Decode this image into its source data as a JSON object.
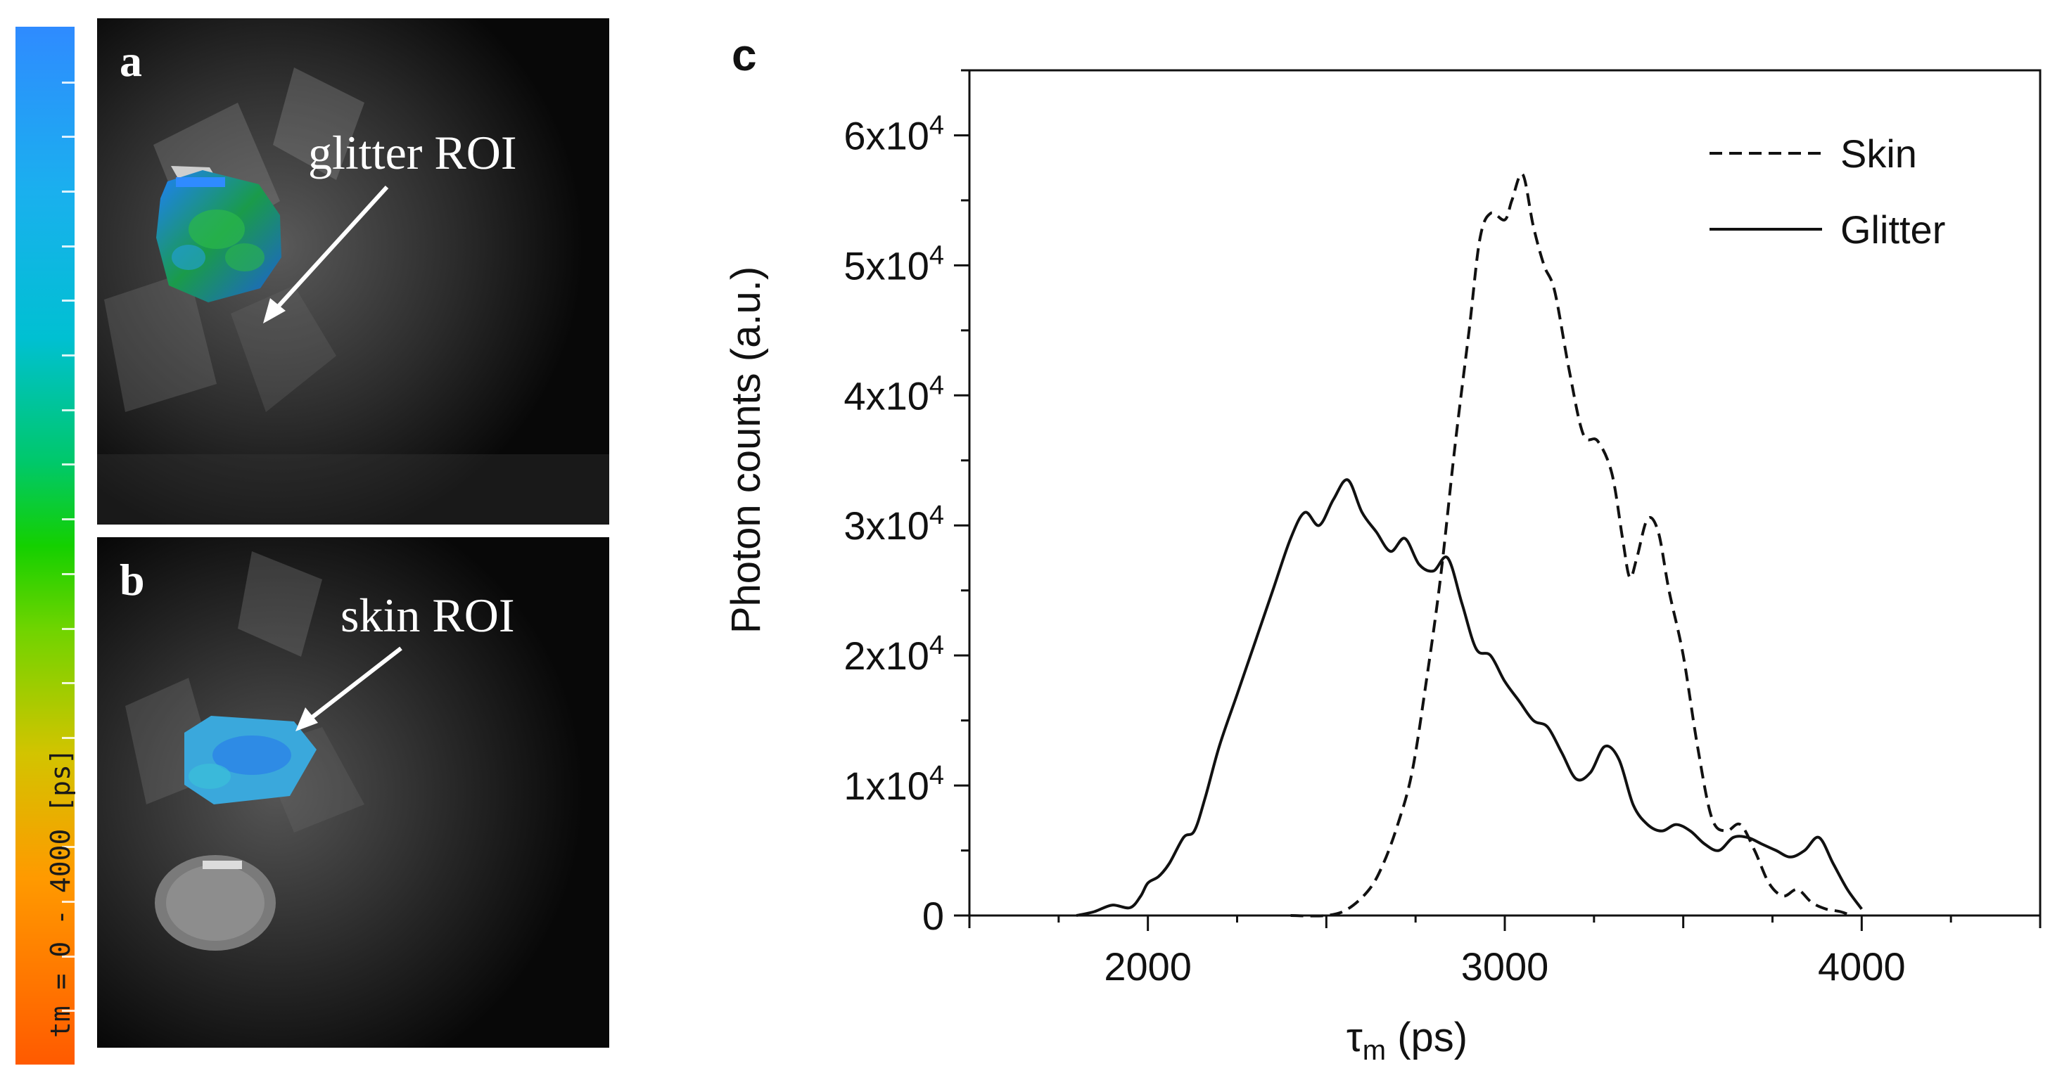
{
  "colorbar": {
    "label": "tm = 0 - 4000 [ps]"
  },
  "panels": {
    "a": {
      "letter": "a",
      "roi_label": "glitter ROI"
    },
    "b": {
      "letter": "b",
      "roi_label": "skin ROI"
    }
  },
  "chart_letter": "c",
  "chart_data": {
    "type": "line",
    "xlabel_main": "τ",
    "xlabel_sub": "m",
    "xlabel_rest": " (ps)",
    "ylabel": "Photon counts (a.u.)",
    "xlim": [
      1500,
      4500
    ],
    "ylim": [
      0,
      65000
    ],
    "xticks": [
      2000,
      3000,
      4000
    ],
    "yticks": [
      {
        "value": 0,
        "base": "0",
        "exp": ""
      },
      {
        "value": 10000,
        "base": "1x10",
        "exp": "4"
      },
      {
        "value": 20000,
        "base": "2x10",
        "exp": "4"
      },
      {
        "value": 30000,
        "base": "3x10",
        "exp": "4"
      },
      {
        "value": 40000,
        "base": "4x10",
        "exp": "4"
      },
      {
        "value": 50000,
        "base": "5x10",
        "exp": "4"
      },
      {
        "value": 60000,
        "base": "6x10",
        "exp": "4"
      }
    ],
    "legend_position": "top-right",
    "series": [
      {
        "name": "Skin",
        "dash": "dashed",
        "x": [
          2400,
          2500,
          2560,
          2620,
          2660,
          2700,
          2740,
          2780,
          2820,
          2860,
          2900,
          2930,
          2960,
          3000,
          3020,
          3050,
          3080,
          3110,
          3140,
          3180,
          3220,
          3260,
          3300,
          3330,
          3350,
          3370,
          3400,
          3430,
          3460,
          3500,
          3540,
          3580,
          3620,
          3660,
          3700,
          3740,
          3780,
          3820,
          3860,
          3900,
          3940,
          3970
        ],
        "y": [
          0,
          0,
          500,
          2000,
          4000,
          7000,
          11000,
          18000,
          26000,
          36000,
          45000,
          52000,
          54000,
          53500,
          55000,
          57000,
          53000,
          50000,
          48000,
          42000,
          37000,
          36500,
          34000,
          29000,
          26000,
          27500,
          30500,
          29500,
          25000,
          20000,
          13000,
          7500,
          6500,
          7000,
          5000,
          2500,
          1500,
          2000,
          1000,
          500,
          300,
          0
        ]
      },
      {
        "name": "Glitter",
        "dash": "solid",
        "x": [
          1800,
          1850,
          1900,
          1950,
          1980,
          2000,
          2030,
          2060,
          2100,
          2130,
          2160,
          2200,
          2250,
          2300,
          2350,
          2400,
          2440,
          2480,
          2520,
          2560,
          2600,
          2640,
          2680,
          2720,
          2760,
          2800,
          2840,
          2880,
          2920,
          2960,
          3000,
          3040,
          3080,
          3120,
          3160,
          3200,
          3240,
          3280,
          3320,
          3360,
          3400,
          3440,
          3480,
          3520,
          3560,
          3600,
          3640,
          3680,
          3720,
          3760,
          3800,
          3840,
          3880,
          3920,
          3960,
          4000
        ],
        "y": [
          0,
          300,
          800,
          600,
          1500,
          2500,
          3000,
          4000,
          6000,
          6500,
          9000,
          13000,
          17000,
          21000,
          25000,
          29000,
          31000,
          30000,
          32000,
          33500,
          31000,
          29500,
          28000,
          29000,
          27000,
          26500,
          27500,
          24000,
          20500,
          20000,
          18000,
          16500,
          15000,
          14500,
          12500,
          10500,
          11000,
          13000,
          12000,
          8500,
          7000,
          6500,
          7000,
          6500,
          5500,
          5000,
          6000,
          6000,
          5500,
          5000,
          4500,
          5000,
          6000,
          4000,
          2000,
          500
        ]
      }
    ]
  }
}
